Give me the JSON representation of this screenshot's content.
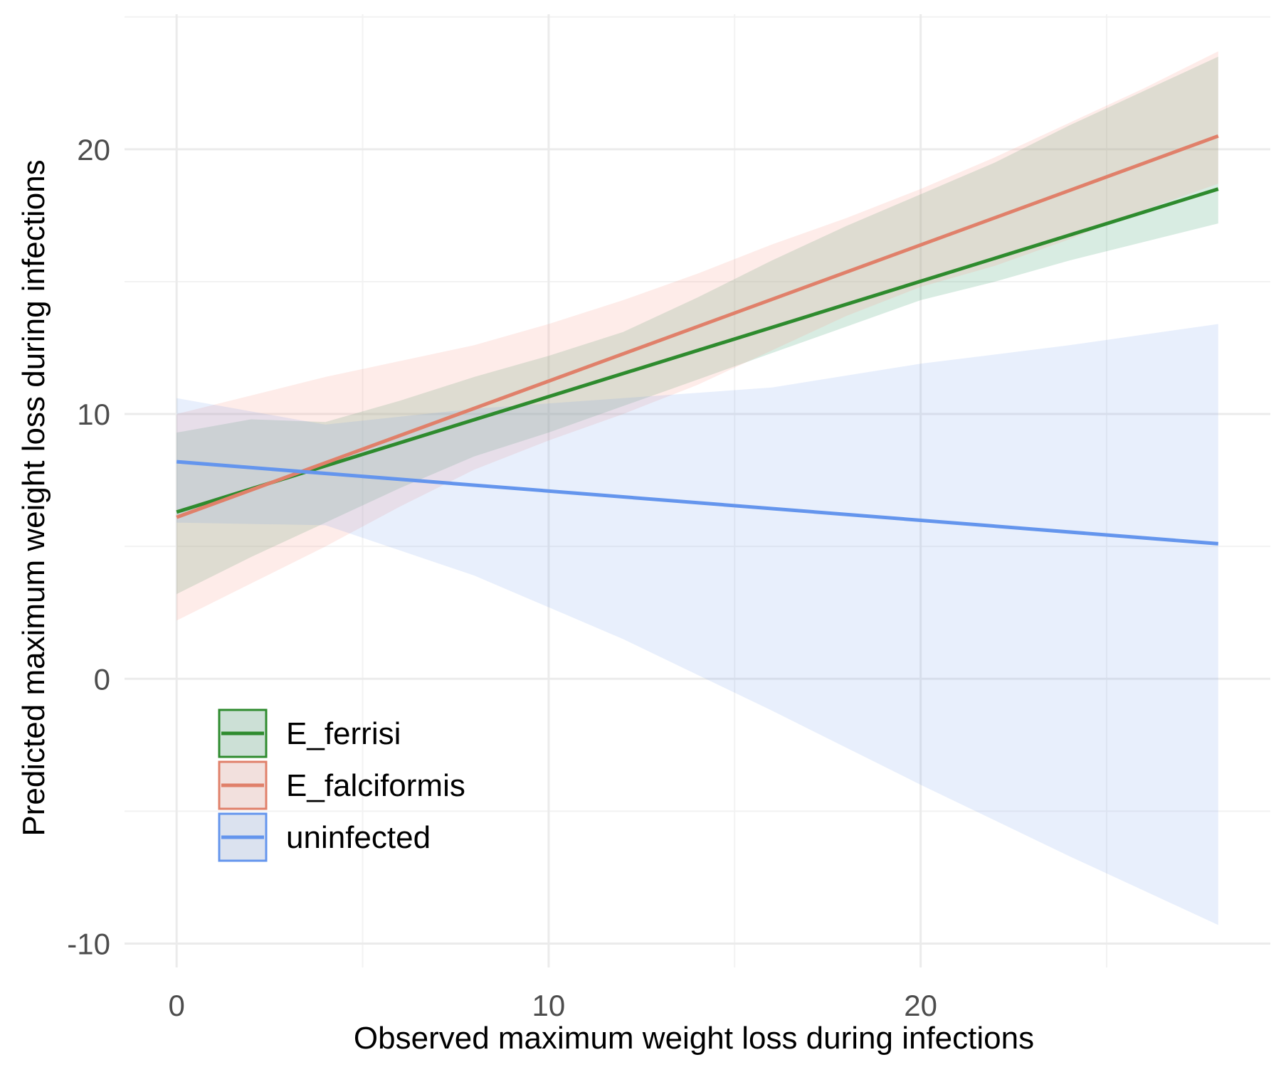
{
  "chart_data": {
    "type": "line",
    "title": "",
    "xlabel": "Observed maximum weight loss during infections",
    "ylabel": "Predicted maximum weight loss during infections",
    "xlim": [
      -1.4,
      29.4
    ],
    "ylim": [
      -10.9,
      25.1
    ],
    "x_ticks": [
      0,
      10,
      20
    ],
    "x_tick_labels": [
      "0",
      "10",
      "20"
    ],
    "y_ticks": [
      -10,
      0,
      10,
      20
    ],
    "y_tick_labels": [
      "-10",
      "0",
      "10",
      "20"
    ],
    "grid": true,
    "legend_position": "bottom-left",
    "series": [
      {
        "name": "E_ferrisi",
        "color": "#2e8b2e",
        "fill": "#3a9e70",
        "fill_opacity": 0.2,
        "x": [
          0,
          28
        ],
        "y": [
          6.3,
          18.5
        ],
        "ribbon": {
          "x": [
            0,
            2,
            4,
            6,
            8,
            10,
            12,
            14,
            16,
            18,
            20,
            22,
            24,
            26,
            28
          ],
          "lower": [
            3.2,
            4.6,
            5.9,
            7.2,
            8.4,
            9.3,
            10.3,
            11.3,
            12.3,
            13.3,
            14.3,
            15.0,
            15.8,
            16.5,
            17.2
          ],
          "upper": [
            9.3,
            9.8,
            9.7,
            10.5,
            11.4,
            12.2,
            13.1,
            14.4,
            15.8,
            17.1,
            18.3,
            19.5,
            20.9,
            22.2,
            23.5
          ]
        }
      },
      {
        "name": "E_falciformis",
        "color": "#e0806a",
        "fill": "#f8a090",
        "fill_opacity": 0.2,
        "x": [
          0,
          28
        ],
        "y": [
          6.1,
          20.5
        ],
        "ribbon": {
          "x": [
            0,
            2,
            4,
            6,
            8,
            10,
            12,
            14,
            16,
            18,
            20,
            22,
            24,
            26,
            28
          ],
          "lower": [
            2.2,
            3.6,
            5.0,
            6.5,
            7.9,
            9.0,
            10.0,
            11.1,
            12.4,
            13.7,
            14.8,
            15.6,
            16.6,
            17.7,
            18.7
          ],
          "upper": [
            10.0,
            10.7,
            11.4,
            12.0,
            12.6,
            13.4,
            14.3,
            15.3,
            16.4,
            17.4,
            18.5,
            19.7,
            21.0,
            22.3,
            23.7
          ]
        }
      },
      {
        "name": "uninfected",
        "color": "#6495ed",
        "fill": "#6495ed",
        "fill_opacity": 0.15,
        "x": [
          0,
          28
        ],
        "y": [
          8.2,
          5.1
        ],
        "ribbon": {
          "x": [
            0,
            4,
            8,
            12,
            16,
            20,
            24,
            28
          ],
          "lower": [
            5.9,
            5.8,
            3.9,
            1.5,
            -1.2,
            -4.0,
            -6.7,
            -9.3
          ],
          "upper": [
            10.6,
            9.6,
            10.2,
            10.6,
            11.0,
            11.9,
            12.6,
            13.4
          ]
        }
      }
    ]
  }
}
